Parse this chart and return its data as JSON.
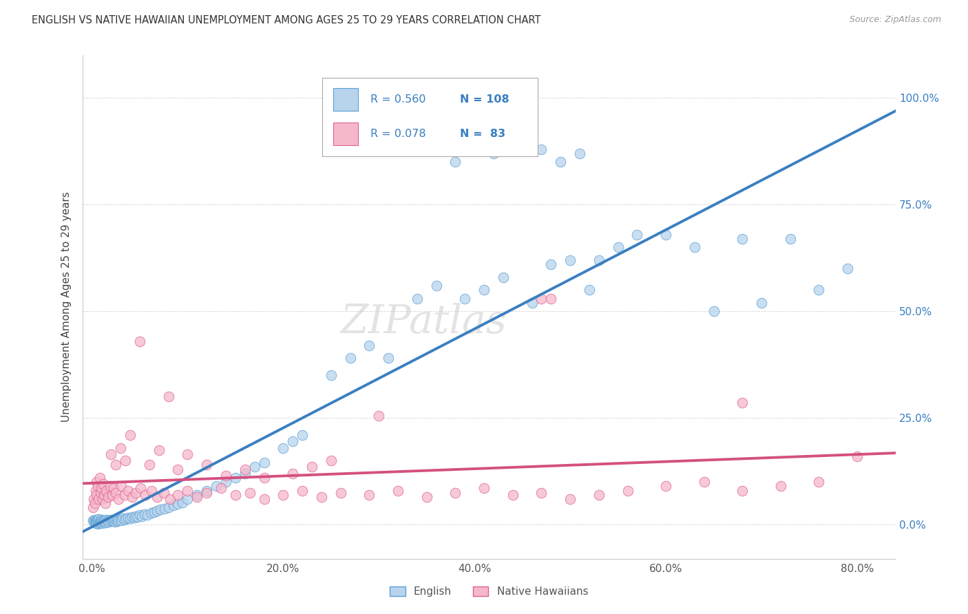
{
  "title": "ENGLISH VS NATIVE HAWAIIAN UNEMPLOYMENT AMONG AGES 25 TO 29 YEARS CORRELATION CHART",
  "source": "Source: ZipAtlas.com",
  "ylabel": "Unemployment Among Ages 25 to 29 years",
  "english_R": 0.56,
  "english_N": 108,
  "hawaiian_R": 0.078,
  "hawaiian_N": 83,
  "english_fill": "#b8d4ec",
  "hawaiian_fill": "#f5b8cb",
  "english_edge": "#5a9fd4",
  "hawaiian_edge": "#e06090",
  "english_line": "#3a7fc1",
  "hawaiian_line": "#d45080",
  "legend_color": "#3a7fc1",
  "right_axis_color": "#3a7fc1",
  "title_color": "#333333",
  "grid_color": "#cccccc",
  "xlim": [
    -0.01,
    0.84
  ],
  "ylim": [
    -0.08,
    1.1
  ],
  "xticks": [
    0.0,
    0.2,
    0.4,
    0.6,
    0.8
  ],
  "xtick_labels": [
    "0.0%",
    "20.0%",
    "40.0%",
    "60.0%",
    "80.0%"
  ],
  "yticks": [
    0.0,
    0.25,
    0.5,
    0.75,
    1.0
  ],
  "ytick_labels": [
    "0.0%",
    "25.0%",
    "50.0%",
    "75.0%",
    "100.0%"
  ],
  "eng_x": [
    0.001,
    0.002,
    0.003,
    0.003,
    0.004,
    0.004,
    0.005,
    0.005,
    0.005,
    0.006,
    0.006,
    0.006,
    0.007,
    0.007,
    0.007,
    0.008,
    0.008,
    0.009,
    0.009,
    0.01,
    0.01,
    0.011,
    0.011,
    0.012,
    0.012,
    0.013,
    0.014,
    0.015,
    0.015,
    0.016,
    0.017,
    0.018,
    0.019,
    0.02,
    0.021,
    0.022,
    0.023,
    0.024,
    0.025,
    0.026,
    0.027,
    0.028,
    0.03,
    0.031,
    0.032,
    0.034,
    0.036,
    0.038,
    0.04,
    0.042,
    0.044,
    0.046,
    0.048,
    0.05,
    0.052,
    0.055,
    0.058,
    0.062,
    0.065,
    0.068,
    0.072,
    0.076,
    0.08,
    0.085,
    0.09,
    0.095,
    0.1,
    0.11,
    0.12,
    0.13,
    0.14,
    0.15,
    0.16,
    0.17,
    0.18,
    0.2,
    0.21,
    0.22,
    0.25,
    0.27,
    0.29,
    0.31,
    0.34,
    0.36,
    0.39,
    0.41,
    0.43,
    0.46,
    0.48,
    0.5,
    0.52,
    0.55,
    0.57,
    0.6,
    0.63,
    0.65,
    0.68,
    0.7,
    0.73,
    0.76,
    0.79,
    0.38,
    0.42,
    0.44,
    0.47,
    0.49,
    0.51,
    0.53
  ],
  "eng_y": [
    0.01,
    0.008,
    0.012,
    0.005,
    0.009,
    0.004,
    0.01,
    0.007,
    0.003,
    0.011,
    0.006,
    0.002,
    0.009,
    0.005,
    0.013,
    0.008,
    0.004,
    0.01,
    0.006,
    0.012,
    0.005,
    0.008,
    0.003,
    0.01,
    0.006,
    0.009,
    0.007,
    0.011,
    0.005,
    0.008,
    0.01,
    0.007,
    0.012,
    0.008,
    0.01,
    0.009,
    0.012,
    0.007,
    0.011,
    0.009,
    0.013,
    0.01,
    0.012,
    0.01,
    0.015,
    0.012,
    0.014,
    0.016,
    0.015,
    0.018,
    0.016,
    0.02,
    0.018,
    0.022,
    0.02,
    0.025,
    0.022,
    0.028,
    0.03,
    0.032,
    0.035,
    0.038,
    0.04,
    0.045,
    0.048,
    0.052,
    0.06,
    0.07,
    0.08,
    0.09,
    0.1,
    0.11,
    0.12,
    0.135,
    0.145,
    0.18,
    0.195,
    0.21,
    0.35,
    0.39,
    0.42,
    0.39,
    0.53,
    0.56,
    0.53,
    0.55,
    0.58,
    0.52,
    0.61,
    0.62,
    0.55,
    0.65,
    0.68,
    0.68,
    0.65,
    0.5,
    0.67,
    0.52,
    0.67,
    0.55,
    0.6,
    0.85,
    0.87,
    0.89,
    0.88,
    0.85,
    0.87,
    0.62
  ],
  "haw_x": [
    0.001,
    0.002,
    0.003,
    0.004,
    0.005,
    0.005,
    0.006,
    0.007,
    0.008,
    0.009,
    0.01,
    0.011,
    0.012,
    0.013,
    0.014,
    0.015,
    0.017,
    0.019,
    0.021,
    0.023,
    0.025,
    0.028,
    0.031,
    0.034,
    0.038,
    0.042,
    0.046,
    0.051,
    0.056,
    0.062,
    0.068,
    0.075,
    0.082,
    0.09,
    0.1,
    0.11,
    0.12,
    0.135,
    0.15,
    0.165,
    0.18,
    0.2,
    0.22,
    0.24,
    0.26,
    0.29,
    0.32,
    0.35,
    0.38,
    0.41,
    0.44,
    0.47,
    0.5,
    0.53,
    0.56,
    0.6,
    0.64,
    0.68,
    0.72,
    0.76,
    0.8,
    0.05,
    0.08,
    0.3,
    0.47,
    0.48,
    0.68,
    0.02,
    0.025,
    0.03,
    0.035,
    0.04,
    0.06,
    0.07,
    0.09,
    0.1,
    0.12,
    0.14,
    0.16,
    0.18,
    0.21,
    0.23,
    0.25
  ],
  "haw_y": [
    0.04,
    0.06,
    0.05,
    0.08,
    0.07,
    0.1,
    0.09,
    0.06,
    0.11,
    0.075,
    0.085,
    0.06,
    0.095,
    0.07,
    0.05,
    0.08,
    0.065,
    0.09,
    0.07,
    0.085,
    0.075,
    0.06,
    0.09,
    0.07,
    0.08,
    0.065,
    0.075,
    0.085,
    0.07,
    0.08,
    0.065,
    0.075,
    0.06,
    0.07,
    0.08,
    0.065,
    0.075,
    0.085,
    0.07,
    0.075,
    0.06,
    0.07,
    0.08,
    0.065,
    0.075,
    0.07,
    0.08,
    0.065,
    0.075,
    0.085,
    0.07,
    0.075,
    0.06,
    0.07,
    0.08,
    0.09,
    0.1,
    0.08,
    0.09,
    0.1,
    0.16,
    0.43,
    0.3,
    0.255,
    0.53,
    0.53,
    0.285,
    0.165,
    0.14,
    0.18,
    0.15,
    0.21,
    0.14,
    0.175,
    0.13,
    0.165,
    0.14,
    0.115,
    0.13,
    0.11,
    0.12,
    0.135,
    0.15
  ]
}
